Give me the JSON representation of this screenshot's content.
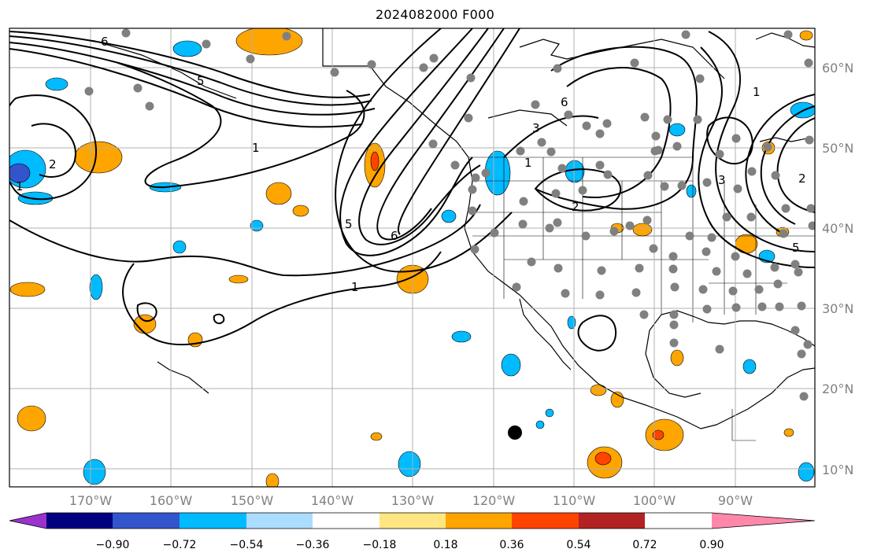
{
  "title": "2024082000 F000",
  "lat_labels": [
    "60°N",
    "50°N",
    "40°N",
    "30°N",
    "20°N",
    "10°N"
  ],
  "lon_labels": [
    "170°W",
    "160°W",
    "150°W",
    "140°W",
    "130°W",
    "120°W",
    "110°W",
    "100°W",
    "90°W"
  ],
  "colorbar": {
    "colors": [
      "#9933cc",
      "#000080",
      "#3355cc",
      "#00bbff",
      "#aaddff",
      "#ffffff",
      "#ffe680",
      "#ffa500",
      "#ff4400",
      "#b22222",
      "#ff88aa"
    ],
    "tick_labels": [
      "−0.90",
      "−0.72",
      "−0.54",
      "−0.36",
      "−0.18",
      "0.18",
      "0.36",
      "0.54",
      "0.72",
      "0.90"
    ]
  },
  "contour_labels": [
    "6",
    "1",
    "5",
    "2",
    "1",
    "5",
    "6",
    "1",
    "3",
    "2",
    "6",
    "1",
    "3",
    "1",
    "2",
    "5"
  ],
  "colors": {
    "grid": "#b0b0b0",
    "station": "#808080",
    "marker": "#000000"
  }
}
